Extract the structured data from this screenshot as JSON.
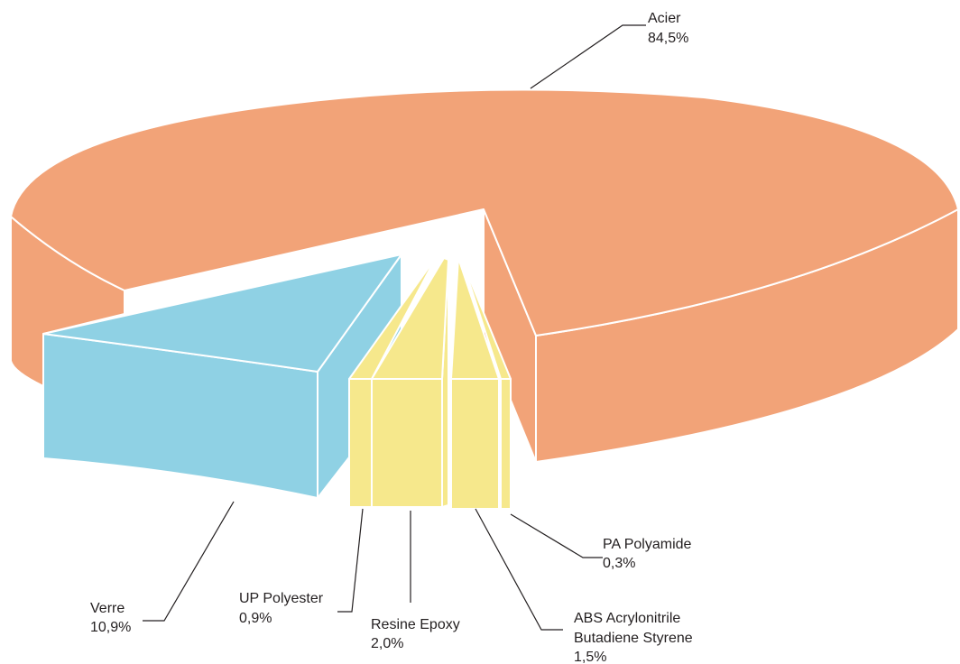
{
  "chart_data": {
    "type": "pie",
    "title": "",
    "slices": [
      {
        "label": "Acier",
        "value_label": "84,5%",
        "value": 84.5
      },
      {
        "label": "Verre",
        "value_label": "10,9%",
        "value": 10.9
      },
      {
        "label": "UP Polyester",
        "value_label": "0,9%",
        "value": 0.9
      },
      {
        "label": "Resine Epoxy",
        "value_label": "2,0%",
        "value": 2.0
      },
      {
        "label": "ABS Acrylonitrile Butadiene Styrene",
        "value_label": "1,5%",
        "value": 1.5,
        "label_lines": [
          "ABS Acrylonitrile",
          "Butadiene Styrene"
        ]
      },
      {
        "label": "PA Polyamide",
        "value_label": "0,3%",
        "value": 0.3
      }
    ],
    "exploded": [
      "Verre",
      "UP Polyester",
      "Resine Epoxy",
      "ABS Acrylonitrile Butadiene Styrene",
      "PA Polyamide"
    ],
    "legend": "none"
  },
  "colors": {
    "acier": "#f2a378",
    "verre": "#8fd1e4",
    "plastics": "#f6e88c",
    "leader": "#231f20"
  }
}
